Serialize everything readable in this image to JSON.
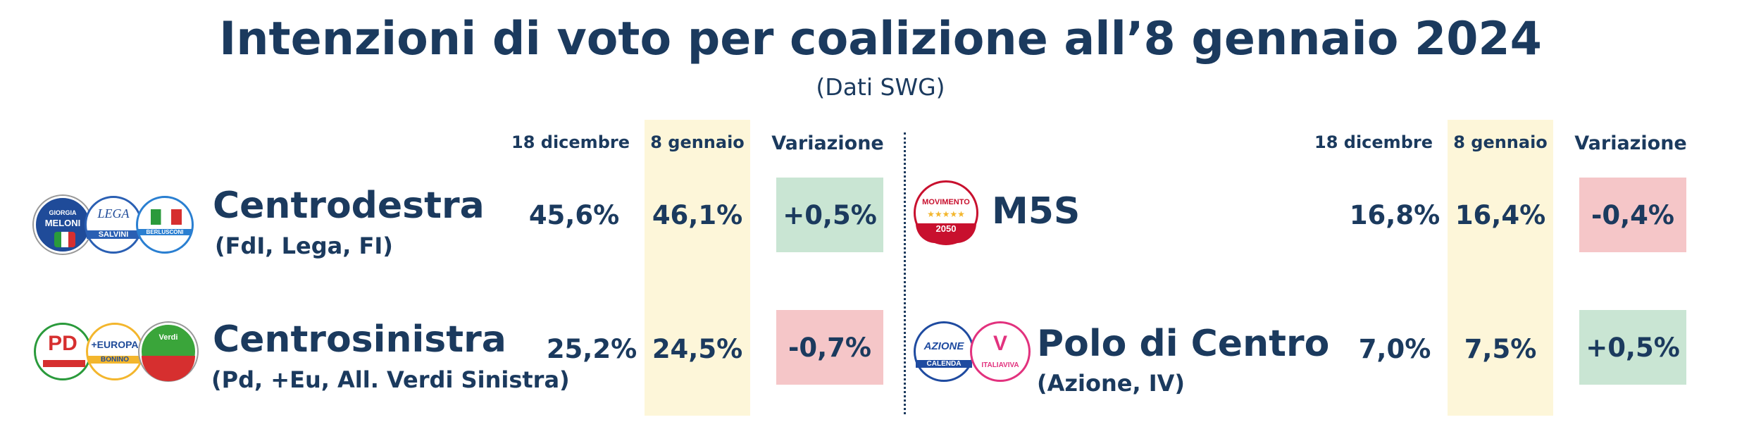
{
  "title": "Intenzioni di voto per coalizione all’8 gennaio 2024",
  "subtitle": "(Dati SWG)",
  "left": {
    "headers": {
      "prev": "18 dicembre",
      "curr": "8 gennaio",
      "change": "Variazione"
    },
    "rows": [
      {
        "name": "Centrodestra",
        "sub": "(FdI, Lega, FI)",
        "prev": "45,6%",
        "curr": "46,1%",
        "change": "+0,5%",
        "trend": "positive",
        "logos": [
          {
            "text": "GIORGIA MELONI",
            "color": "#1f4b99",
            "icon": "fdi-logo"
          },
          {
            "text": "LEGA SALVINI PREMIER",
            "color": "#2a5fb3",
            "icon": "lega-logo"
          },
          {
            "text": "FORZA ITALIA BERLUSCONI PRESIDENTE",
            "color": "#2a7fd1",
            "icon": "forza-italia-logo"
          }
        ]
      },
      {
        "name": "Centrosinistra",
        "sub": "(Pd, +Eu, All. Verdi Sinistra)",
        "prev": "25,2%",
        "curr": "24,5%",
        "change": "-0,7%",
        "trend": "negative",
        "logos": [
          {
            "text": "PD",
            "color": "#d62f2f",
            "icon": "pd-logo"
          },
          {
            "text": "+EUROPA EMMA BONINO",
            "color": "#f3b62d",
            "icon": "piu-europa-logo"
          },
          {
            "text": "Alleanza Verdi Sinistra",
            "color": "#3aa53a",
            "icon": "avs-logo"
          }
        ]
      }
    ]
  },
  "right": {
    "headers": {
      "prev": "18 dicembre",
      "curr": "8 gennaio",
      "change": "Variazione"
    },
    "rows": [
      {
        "name": "M5S",
        "sub": "",
        "prev": "16,8%",
        "curr": "16,4%",
        "change": "-0,4%",
        "trend": "negative",
        "logos": [
          {
            "text": "MOVIMENTO 2050",
            "color": "#c8102e",
            "icon": "m5s-logo"
          }
        ]
      },
      {
        "name": "Polo di Centro",
        "sub": "(Azione, IV)",
        "prev": "7,0%",
        "curr": "7,5%",
        "change": "+0,5%",
        "trend": "positive",
        "logos": [
          {
            "text": "AZIONE CALENDA",
            "color": "#1f4ba0",
            "icon": "azione-logo"
          },
          {
            "text": "ITALIAVIVA",
            "color": "#e2327e",
            "icon": "italia-viva-logo"
          }
        ]
      }
    ]
  },
  "colors": {
    "text": "#1b3a5e",
    "highlight": "#fdf6d9",
    "positive": "#c9e5d3",
    "negative": "#f5c6c8"
  }
}
